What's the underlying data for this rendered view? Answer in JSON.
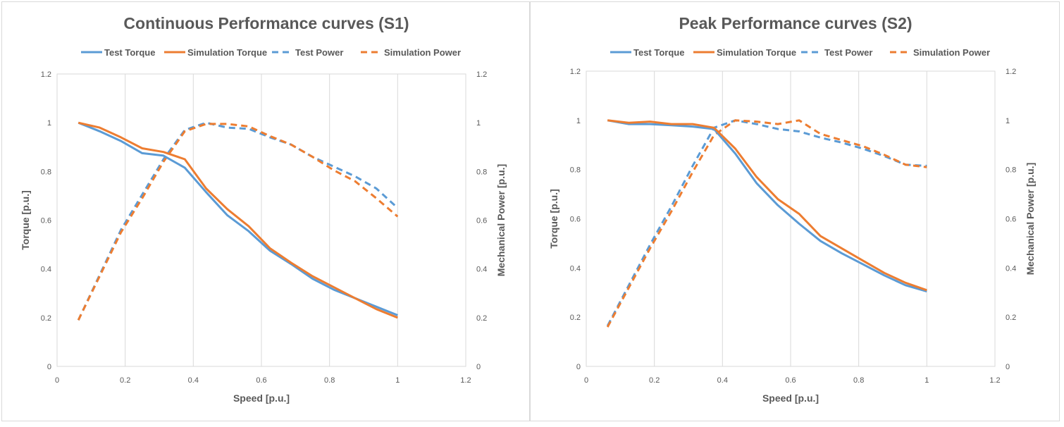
{
  "chart_data": [
    {
      "type": "line",
      "title": "Continuous Performance curves (S1)",
      "xlabel": "Speed [p.u.]",
      "ylabel": "Torque [p.u.]",
      "y2label": "Mechanical Power [p.u.]",
      "xlim": [
        0,
        1.2
      ],
      "ylim": [
        0,
        1.2
      ],
      "y2lim": [
        0,
        1.2
      ],
      "xticks": [
        "0",
        "0.2",
        "0.4",
        "0.6",
        "0.8",
        "1",
        "1.2"
      ],
      "yticks": [
        "0",
        "0.2",
        "0.4",
        "0.6",
        "0.8",
        "1",
        "1.2"
      ],
      "grid": "vertical",
      "legend_position": "top",
      "series": [
        {
          "name": "Test Torque",
          "axis": "left",
          "color": "#5b9bd5",
          "dash": "solid",
          "x": [
            0.0625,
            0.125,
            0.1875,
            0.25,
            0.3125,
            0.375,
            0.4375,
            0.5,
            0.5625,
            0.625,
            0.6875,
            0.75,
            0.8125,
            0.875,
            0.9375,
            1.0
          ],
          "y": [
            1.0,
            0.965,
            0.925,
            0.875,
            0.865,
            0.815,
            0.715,
            0.62,
            0.555,
            0.475,
            0.42,
            0.36,
            0.315,
            0.28,
            0.245,
            0.21
          ]
        },
        {
          "name": "Simulation Torque",
          "axis": "left",
          "color": "#ed7d31",
          "dash": "solid",
          "x": [
            0.0625,
            0.125,
            0.1875,
            0.25,
            0.3125,
            0.375,
            0.4375,
            0.5,
            0.5625,
            0.625,
            0.6875,
            0.75,
            0.8125,
            0.875,
            0.9375,
            1.0
          ],
          "y": [
            1.0,
            0.98,
            0.94,
            0.895,
            0.88,
            0.85,
            0.73,
            0.645,
            0.575,
            0.485,
            0.425,
            0.37,
            0.325,
            0.28,
            0.235,
            0.2
          ]
        },
        {
          "name": "Test Power",
          "axis": "right",
          "color": "#5b9bd5",
          "dash": "dashed",
          "x": [
            0.0625,
            0.125,
            0.1875,
            0.25,
            0.3125,
            0.375,
            0.4375,
            0.5,
            0.5625,
            0.625,
            0.6875,
            0.75,
            0.8125,
            0.875,
            0.9375,
            1.0
          ],
          "y": [
            0.19,
            0.375,
            0.56,
            0.705,
            0.85,
            0.97,
            1.0,
            0.98,
            0.975,
            0.94,
            0.91,
            0.86,
            0.82,
            0.78,
            0.73,
            0.65
          ]
        },
        {
          "name": "Simulation Power",
          "axis": "right",
          "color": "#ed7d31",
          "dash": "dashed",
          "x": [
            0.0625,
            0.125,
            0.1875,
            0.25,
            0.3125,
            0.375,
            0.4375,
            0.5,
            0.5625,
            0.625,
            0.6875,
            0.75,
            0.8125,
            0.875,
            0.9375,
            1.0
          ],
          "y": [
            0.19,
            0.37,
            0.55,
            0.69,
            0.84,
            0.965,
            0.995,
            0.995,
            0.985,
            0.945,
            0.91,
            0.86,
            0.805,
            0.76,
            0.69,
            0.615
          ]
        }
      ]
    },
    {
      "type": "line",
      "title": "Peak Performance curves (S2)",
      "xlabel": "Speed [p.u.]",
      "ylabel": "Torque [p.u.]",
      "y2label": "Mechanical Power [p.u.]",
      "xlim": [
        0,
        1.2
      ],
      "ylim": [
        0,
        1.2
      ],
      "y2lim": [
        0,
        1.2
      ],
      "xticks": [
        "0",
        "0.2",
        "0.4",
        "0.6",
        "0.8",
        "1",
        "1.2"
      ],
      "yticks": [
        "0",
        "0.2",
        "0.4",
        "0.6",
        "0.8",
        "1",
        "1.2"
      ],
      "grid": "vertical",
      "legend_position": "top",
      "series": [
        {
          "name": "Test Torque",
          "axis": "left",
          "color": "#5b9bd5",
          "dash": "solid",
          "x": [
            0.0625,
            0.125,
            0.1875,
            0.25,
            0.3125,
            0.375,
            0.4375,
            0.5,
            0.5625,
            0.625,
            0.6875,
            0.75,
            0.8125,
            0.875,
            0.9375,
            1.0
          ],
          "y": [
            1.0,
            0.985,
            0.985,
            0.98,
            0.975,
            0.965,
            0.865,
            0.745,
            0.655,
            0.58,
            0.51,
            0.46,
            0.415,
            0.37,
            0.33,
            0.305
          ]
        },
        {
          "name": "Simulation Torque",
          "axis": "left",
          "color": "#ed7d31",
          "dash": "solid",
          "x": [
            0.0625,
            0.125,
            0.1875,
            0.25,
            0.3125,
            0.375,
            0.4375,
            0.5,
            0.5625,
            0.625,
            0.6875,
            0.75,
            0.8125,
            0.875,
            0.9375,
            1.0
          ],
          "y": [
            1.0,
            0.99,
            0.995,
            0.985,
            0.985,
            0.97,
            0.885,
            0.77,
            0.68,
            0.62,
            0.53,
            0.48,
            0.43,
            0.38,
            0.34,
            0.31
          ]
        },
        {
          "name": "Test Power",
          "axis": "right",
          "color": "#5b9bd5",
          "dash": "dashed",
          "x": [
            0.0625,
            0.125,
            0.1875,
            0.25,
            0.3125,
            0.375,
            0.4375,
            0.5,
            0.5625,
            0.625,
            0.6875,
            0.75,
            0.8125,
            0.875,
            0.9375,
            1.0
          ],
          "y": [
            0.165,
            0.33,
            0.495,
            0.65,
            0.815,
            0.97,
            1.0,
            0.985,
            0.965,
            0.955,
            0.93,
            0.91,
            0.885,
            0.855,
            0.82,
            0.815
          ]
        },
        {
          "name": "Simulation Power",
          "axis": "right",
          "color": "#ed7d31",
          "dash": "dashed",
          "x": [
            0.0625,
            0.125,
            0.1875,
            0.25,
            0.3125,
            0.375,
            0.4375,
            0.5,
            0.5625,
            0.625,
            0.6875,
            0.75,
            0.8125,
            0.875,
            0.9375,
            1.0
          ],
          "y": [
            0.16,
            0.32,
            0.48,
            0.63,
            0.79,
            0.94,
            1.0,
            0.995,
            0.985,
            1.0,
            0.945,
            0.92,
            0.895,
            0.86,
            0.82,
            0.81
          ]
        }
      ]
    }
  ]
}
